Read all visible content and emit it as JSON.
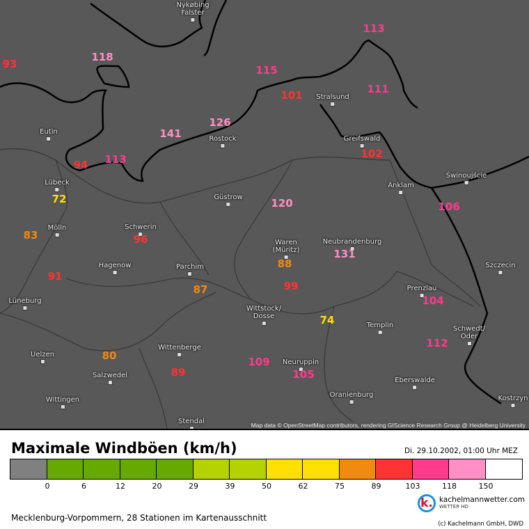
{
  "map": {
    "attribution": "Map data © OpenStreetMap contributors, rendering GIScience Research Group @ Heidelberg University",
    "cities": [
      {
        "name": "Nykøbing\nFalster"
      },
      {
        "name": "Eutin"
      },
      {
        "name": "Lübeck"
      },
      {
        "name": "Rostock"
      },
      {
        "name": "Güstrow"
      },
      {
        "name": "Stralsund"
      },
      {
        "name": "Greifswald"
      },
      {
        "name": "Anklam"
      },
      {
        "name": "Świnoujście"
      },
      {
        "name": "Mölln"
      },
      {
        "name": "Schwerin"
      },
      {
        "name": "Waren\n(Müritz)"
      },
      {
        "name": "Neubrandenburg"
      },
      {
        "name": "Szczecin"
      },
      {
        "name": "Hagenow"
      },
      {
        "name": "Parchim"
      },
      {
        "name": "Lüneburg"
      },
      {
        "name": "Prenzlau"
      },
      {
        "name": "Wittstock/\nDosse"
      },
      {
        "name": "Templin"
      },
      {
        "name": "Schwedt/\nOder"
      },
      {
        "name": "Wittenberge"
      },
      {
        "name": "Uelzen"
      },
      {
        "name": "Neuruppin"
      },
      {
        "name": "Salzwedel"
      },
      {
        "name": "Eberswalde"
      },
      {
        "name": "Oranienburg"
      },
      {
        "name": "Wittingen"
      },
      {
        "name": "Stendal"
      },
      {
        "name": "Kostrzyn"
      }
    ],
    "stations": [
      {
        "value": "93",
        "color": "#ff3333"
      },
      {
        "value": "118",
        "color": "#ff8fc4"
      },
      {
        "value": "115",
        "color": "#ff3b8c"
      },
      {
        "value": "113",
        "color": "#ff3b8c"
      },
      {
        "value": "101",
        "color": "#ff3333"
      },
      {
        "value": "111",
        "color": "#ff3b8c"
      },
      {
        "value": "126",
        "color": "#ff8fc4"
      },
      {
        "value": "141",
        "color": "#ff8fc4"
      },
      {
        "value": "102",
        "color": "#ff3333"
      },
      {
        "value": "94",
        "color": "#ff3333"
      },
      {
        "value": "113",
        "color": "#ff3b8c"
      },
      {
        "value": "72",
        "color": "#ffe000"
      },
      {
        "value": "120",
        "color": "#ff8fc4"
      },
      {
        "value": "106",
        "color": "#ff3b8c"
      },
      {
        "value": "83",
        "color": "#f08a10"
      },
      {
        "value": "96",
        "color": "#ff3333"
      },
      {
        "value": "88",
        "color": "#f08a10"
      },
      {
        "value": "131",
        "color": "#ff8fc4"
      },
      {
        "value": "91",
        "color": "#ff3333"
      },
      {
        "value": "87",
        "color": "#f08a10"
      },
      {
        "value": "99",
        "color": "#ff3333"
      },
      {
        "value": "104",
        "color": "#ff3b8c"
      },
      {
        "value": "74",
        "color": "#ffe000"
      },
      {
        "value": "80",
        "color": "#f08a10"
      },
      {
        "value": "89",
        "color": "#ff3333"
      },
      {
        "value": "109",
        "color": "#ff3b8c"
      },
      {
        "value": "105",
        "color": "#ff3b8c"
      },
      {
        "value": "112",
        "color": "#ff3b8c"
      }
    ]
  },
  "legend": {
    "title": "Maximale Windböen (km/h)",
    "date": "Di. 29.10.2002, 01:00 Uhr MEZ",
    "colors": [
      "#808080",
      "#66aa00",
      "#66aa00",
      "#66aa00",
      "#66aa00",
      "#b4d200",
      "#b4d200",
      "#ffe000",
      "#ffe000",
      "#f08a10",
      "#ff3333",
      "#ff3b8c",
      "#ff8fc4",
      "#ffffff"
    ],
    "ticks": [
      "0",
      "6",
      "12",
      "20",
      "29",
      "39",
      "50",
      "62",
      "75",
      "89",
      "103",
      "118",
      "150"
    ]
  },
  "footer": {
    "region": "Mecklenburg-Vorpommern, 28 Stationen im Kartenausschnitt",
    "brand": "kachelmannwetter.com",
    "brand_sub": "WETTER HD",
    "logo_letter": "k.",
    "copyright": "(c) Kachelmann GmbH, DWD"
  }
}
